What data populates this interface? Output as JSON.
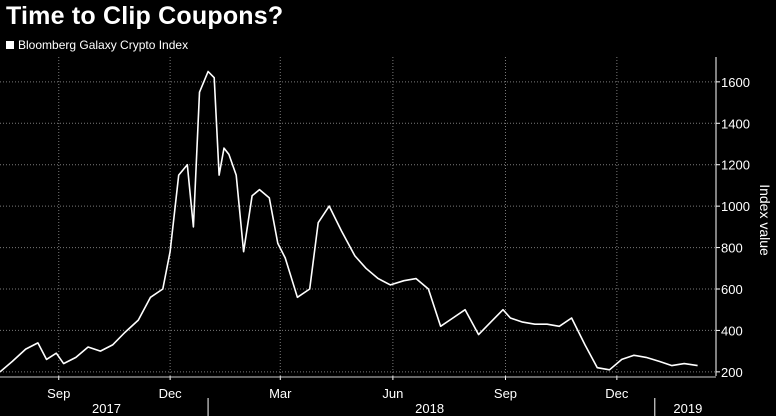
{
  "title": "Time to Clip Coupons?",
  "chart_data": {
    "type": "line",
    "title": "Time to Clip Coupons?",
    "xlabel": "",
    "ylabel": "Index value",
    "ylim": [
      180,
      1720
    ],
    "yticks": [
      200,
      400,
      600,
      800,
      1000,
      1200,
      1400,
      1600
    ],
    "xlim": [
      "2017-07-15",
      "2019-02-20"
    ],
    "xticks": [
      {
        "label": "Sep",
        "date": "2017-09-01"
      },
      {
        "label": "Dec",
        "date": "2017-12-01"
      },
      {
        "label": "Mar",
        "date": "2018-03-01"
      },
      {
        "label": "Jun",
        "date": "2018-06-01"
      },
      {
        "label": "Sep",
        "date": "2018-09-01"
      },
      {
        "label": "Dec",
        "date": "2018-12-01"
      }
    ],
    "years": [
      {
        "label": "2017",
        "date": "2017-10-10"
      },
      {
        "label": "2018",
        "date": "2018-07-01"
      },
      {
        "label": "2019",
        "date": "2019-01-28"
      }
    ],
    "year_separators": [
      "2018-01-01",
      "2019-01-01"
    ],
    "grid": true,
    "legend_position": "top-left",
    "series": [
      {
        "name": "Bloomberg Galaxy Crypto Index",
        "color": "#ffffff",
        "x": [
          "2017-07-15",
          "2017-07-25",
          "2017-08-05",
          "2017-08-15",
          "2017-08-22",
          "2017-08-30",
          "2017-09-05",
          "2017-09-15",
          "2017-09-25",
          "2017-10-05",
          "2017-10-15",
          "2017-10-25",
          "2017-11-05",
          "2017-11-15",
          "2017-11-25",
          "2017-12-01",
          "2017-12-08",
          "2017-12-15",
          "2017-12-20",
          "2017-12-25",
          "2018-01-01",
          "2018-01-06",
          "2018-01-10",
          "2018-01-14",
          "2018-01-18",
          "2018-01-24",
          "2018-01-30",
          "2018-02-06",
          "2018-02-12",
          "2018-02-20",
          "2018-02-27",
          "2018-03-05",
          "2018-03-15",
          "2018-03-25",
          "2018-04-01",
          "2018-04-10",
          "2018-04-20",
          "2018-05-01",
          "2018-05-10",
          "2018-05-20",
          "2018-05-30",
          "2018-06-10",
          "2018-06-20",
          "2018-06-30",
          "2018-07-10",
          "2018-07-20",
          "2018-07-30",
          "2018-08-10",
          "2018-08-20",
          "2018-08-30",
          "2018-09-05",
          "2018-09-15",
          "2018-09-25",
          "2018-10-05",
          "2018-10-15",
          "2018-10-25",
          "2018-11-05",
          "2018-11-15",
          "2018-11-25",
          "2018-12-05",
          "2018-12-15",
          "2018-12-25",
          "2019-01-05",
          "2019-01-15",
          "2019-01-25",
          "2019-02-05"
        ],
        "y": [
          200,
          250,
          310,
          340,
          260,
          290,
          240,
          270,
          320,
          300,
          330,
          390,
          450,
          560,
          600,
          780,
          1150,
          1200,
          900,
          1550,
          1650,
          1620,
          1150,
          1280,
          1250,
          1150,
          780,
          1050,
          1080,
          1040,
          820,
          750,
          560,
          600,
          920,
          1000,
          880,
          760,
          700,
          650,
          620,
          640,
          650,
          600,
          420,
          460,
          500,
          380,
          440,
          500,
          460,
          440,
          430,
          430,
          420,
          460,
          330,
          220,
          210,
          260,
          280,
          270,
          250,
          230,
          240,
          230
        ]
      }
    ]
  }
}
